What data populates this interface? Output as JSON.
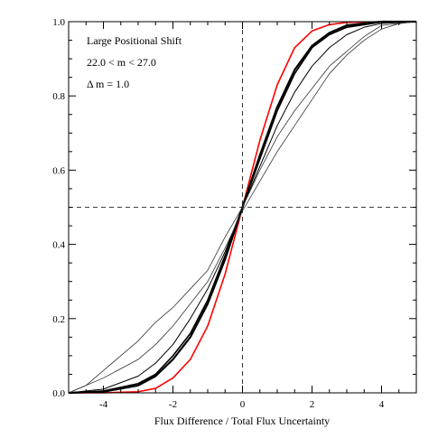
{
  "chart_data": {
    "type": "line",
    "title": "",
    "xlabel": "Flux Difference / Total Flux Uncertainty",
    "ylabel": "",
    "xlim": [
      -5,
      5
    ],
    "ylim": [
      0,
      1
    ],
    "xticks": [
      -4,
      -2,
      0,
      2,
      4
    ],
    "xtick_labels": [
      "-4",
      "-2",
      "0",
      "2",
      "4"
    ],
    "yticks": [
      0.0,
      0.2,
      0.4,
      0.6,
      0.8,
      1.0
    ],
    "ytick_labels": [
      "0.0",
      "0.2",
      "0.4",
      "0.6",
      "0.8",
      "1.0"
    ],
    "grid": false,
    "annotations": [
      "Large Positional Shift",
      "22.0 < m < 27.0",
      "Δ m = 1.0"
    ],
    "reference_lines": {
      "x": 0,
      "y": 0.5,
      "style": "dashed"
    },
    "series": [
      {
        "color": "#ff0000",
        "width": 1.6,
        "x": [
          -5,
          -4,
          -3,
          -2.5,
          -2,
          -1.5,
          -1,
          -0.5,
          0,
          0.5,
          1,
          1.5,
          2,
          2.5,
          3,
          4,
          5
        ],
        "y": [
          0,
          0,
          0.003,
          0.012,
          0.04,
          0.09,
          0.18,
          0.32,
          0.5,
          0.68,
          0.83,
          0.93,
          0.975,
          0.992,
          0.998,
          1,
          1
        ]
      },
      {
        "color": "#000000",
        "width": 2.2,
        "x": [
          -5,
          -4,
          -3,
          -2.5,
          -2,
          -1.5,
          -1,
          -0.5,
          0,
          0.5,
          1,
          1.5,
          2,
          2.5,
          3,
          4,
          5
        ],
        "y": [
          0,
          0.003,
          0.02,
          0.045,
          0.09,
          0.15,
          0.24,
          0.36,
          0.5,
          0.64,
          0.77,
          0.87,
          0.935,
          0.97,
          0.99,
          1,
          1
        ]
      },
      {
        "color": "#000000",
        "width": 1.6,
        "x": [
          -5,
          -4,
          -3,
          -2.5,
          -2,
          -1.5,
          -1,
          -0.5,
          0,
          0.5,
          1,
          1.5,
          2,
          2.5,
          3,
          4,
          5
        ],
        "y": [
          0,
          0.005,
          0.025,
          0.05,
          0.1,
          0.16,
          0.25,
          0.37,
          0.5,
          0.63,
          0.76,
          0.86,
          0.93,
          0.965,
          0.985,
          0.999,
          1
        ]
      },
      {
        "color": "#000000",
        "width": 1.0,
        "x": [
          -5,
          -4,
          -3,
          -2.5,
          -2,
          -1.5,
          -1,
          -0.5,
          0,
          0.5,
          1,
          1.5,
          2,
          2.5,
          3,
          3.5,
          4,
          5
        ],
        "y": [
          0,
          0.01,
          0.045,
          0.08,
          0.13,
          0.2,
          0.28,
          0.38,
          0.5,
          0.61,
          0.72,
          0.81,
          0.88,
          0.93,
          0.965,
          0.985,
          0.995,
          1
        ]
      },
      {
        "color": "#333333",
        "width": 0.8,
        "x": [
          -5,
          -4,
          -3,
          -2.5,
          -2,
          -1.5,
          -1,
          -0.5,
          0,
          0.5,
          1,
          1.5,
          2,
          2.5,
          3,
          3.5,
          4,
          4.5,
          5
        ],
        "y": [
          0,
          0.04,
          0.09,
          0.13,
          0.18,
          0.24,
          0.3,
          0.39,
          0.49,
          0.57,
          0.65,
          0.72,
          0.79,
          0.86,
          0.91,
          0.95,
          0.98,
          0.995,
          1
        ]
      },
      {
        "color": "#333333",
        "width": 0.8,
        "x": [
          -5,
          -4.5,
          -4,
          -3.5,
          -3,
          -2.5,
          -2,
          -1.5,
          -1,
          -0.5,
          0,
          0.5,
          1,
          1.5,
          2,
          2.5,
          3,
          3.5,
          4,
          5
        ],
        "y": [
          0,
          0.02,
          0.06,
          0.1,
          0.14,
          0.19,
          0.23,
          0.28,
          0.33,
          0.42,
          0.5,
          0.6,
          0.69,
          0.76,
          0.82,
          0.88,
          0.92,
          0.96,
          0.99,
          1
        ]
      }
    ]
  }
}
